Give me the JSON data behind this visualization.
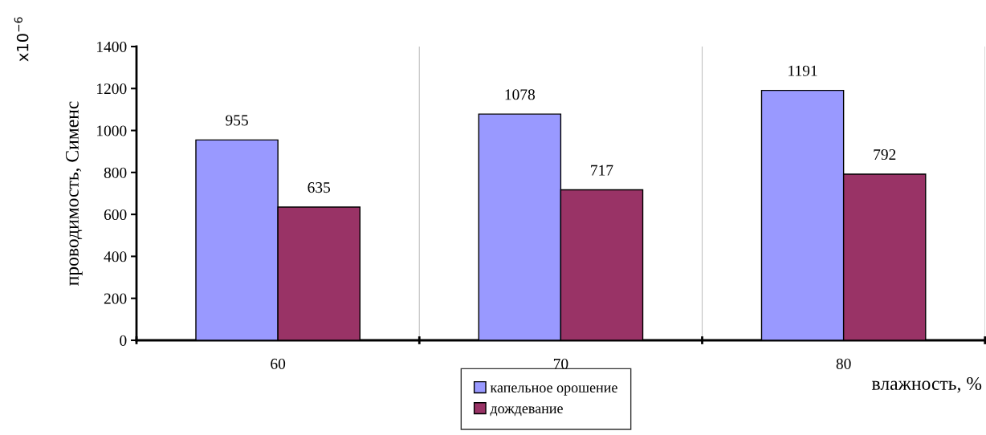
{
  "chart_data": {
    "type": "bar",
    "ylabel": "проводимость, Сименс",
    "xlabel": "влажность, %",
    "categories": [
      "60",
      "70",
      "80"
    ],
    "series": [
      {
        "name": "капельное орошение",
        "color": "#9999ff",
        "values": [
          955,
          1078,
          1191
        ]
      },
      {
        "name": "дождевание",
        "color": "#993366",
        "values": [
          635,
          717,
          792
        ]
      }
    ],
    "ylim": [
      0,
      1400
    ],
    "yticks": [
      0,
      200,
      400,
      600,
      800,
      1000,
      1200,
      1400
    ],
    "data_labels": true,
    "grid": "x",
    "legend": "bottom",
    "annotations": [
      "x10$^{−6}$"
    ]
  }
}
